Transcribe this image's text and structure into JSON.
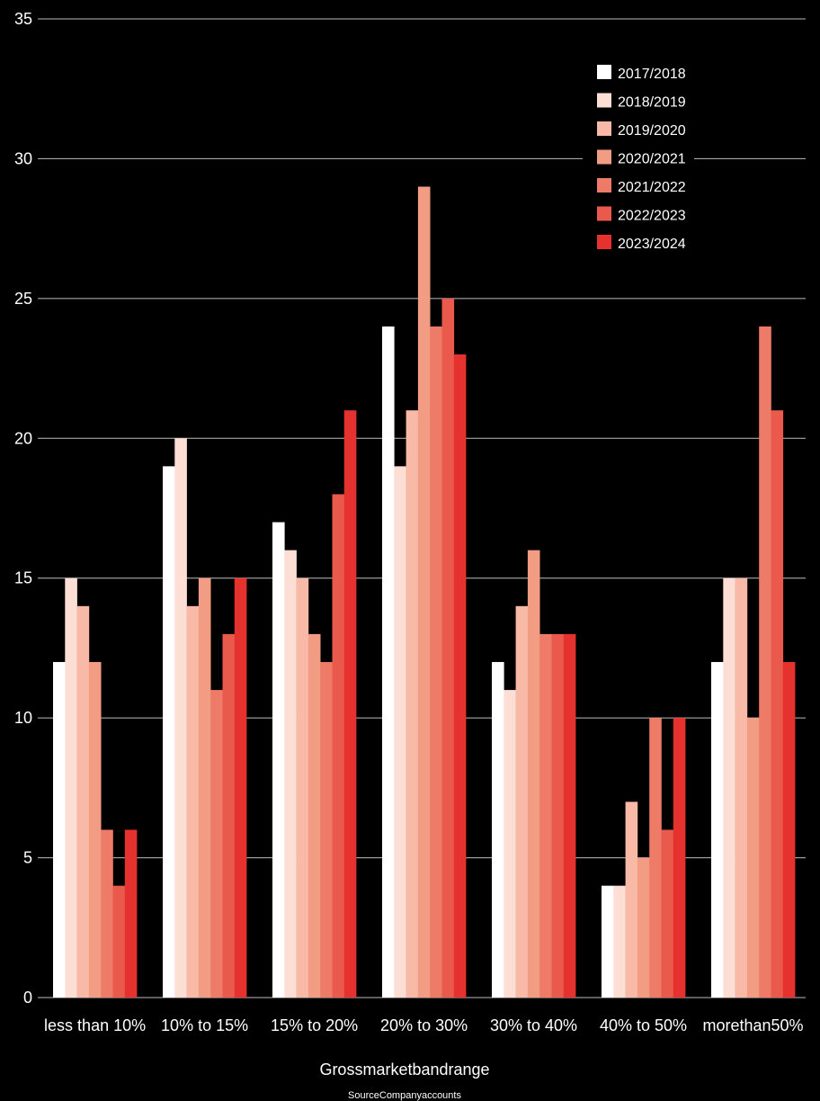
{
  "chart_data": {
    "type": "bar",
    "xlabel": "Grossmarketbandrange",
    "source": "SourceCompanyaccounts",
    "ylim": [
      0,
      35
    ],
    "yticks": [
      0,
      5,
      10,
      15,
      20,
      25,
      30,
      35
    ],
    "grid": true,
    "legend_position": "top-right",
    "categories": [
      "less than 10%",
      "10% to 15%",
      "15% to 20%",
      "20% to 30%",
      "30% to 40%",
      "40% to 50%",
      "morethan50%"
    ],
    "series": [
      {
        "name": "2017/2018",
        "color": "#ffffff",
        "values": [
          12,
          19,
          17,
          24,
          12,
          4,
          12
        ]
      },
      {
        "name": "2018/2019",
        "color": "#fcded5",
        "values": [
          15,
          20,
          16,
          19,
          11,
          4,
          15
        ]
      },
      {
        "name": "2019/2020",
        "color": "#f8b9a6",
        "values": [
          14,
          14,
          15,
          21,
          14,
          7,
          15
        ]
      },
      {
        "name": "2020/2021",
        "color": "#f39c84",
        "values": [
          12,
          15,
          13,
          29,
          16,
          5,
          10
        ]
      },
      {
        "name": "2021/2022",
        "color": "#ee7b67",
        "values": [
          6,
          11,
          12,
          24,
          13,
          10,
          24
        ]
      },
      {
        "name": "2022/2023",
        "color": "#e95a4c",
        "values": [
          4,
          13,
          18,
          25,
          13,
          6,
          21
        ]
      },
      {
        "name": "2023/2024",
        "color": "#e5322e",
        "values": [
          6,
          15,
          21,
          23,
          13,
          10,
          12
        ]
      }
    ]
  }
}
